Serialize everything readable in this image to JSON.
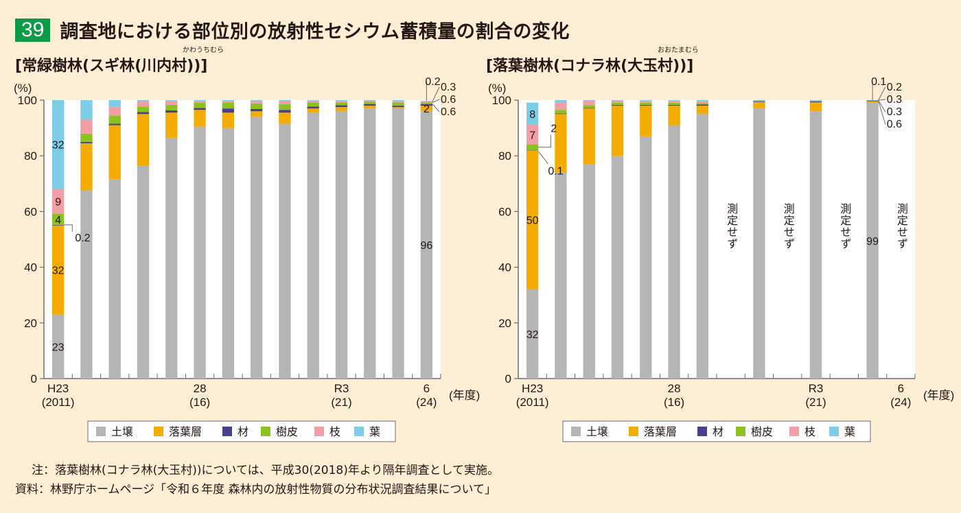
{
  "figure": {
    "number": "39",
    "title": "調査地における部位別の放射性セシウム蓄積量の割合の変化"
  },
  "panels": [
    {
      "title": "[常緑樹林(スギ林(川内村))]",
      "ruby": "かわうちむら"
    },
    {
      "title": "[落葉樹林(コナラ林(大玉村))]",
      "ruby": "おおたまむら"
    }
  ],
  "legend": [
    {
      "name": "土壌",
      "color": "#b5b5b6"
    },
    {
      "name": "落葉層",
      "color": "#f5ac00"
    },
    {
      "name": "材",
      "color": "#46408f"
    },
    {
      "name": "樹皮",
      "color": "#8cc21f"
    },
    {
      "name": "枝",
      "color": "#f19ea6"
    },
    {
      "name": "葉",
      "color": "#7dcde6"
    }
  ],
  "notes": {
    "note": "注：落葉樹林(コナラ林(大玉村))については、平成30(2018)年より隔年調査として実施。",
    "source": "資料：林野庁ホームページ「令和６年度 森林内の放射性物質の分布状況調査結果について」"
  },
  "chart_data": [
    {
      "type": "bar",
      "stacked": true,
      "title": "[常緑樹林(スギ林(川内村))]",
      "ylabel": "(%)",
      "xlabel": "(年度)",
      "ylim": [
        0,
        100
      ],
      "yticks": [
        0,
        20,
        40,
        60,
        80,
        100
      ],
      "categories": [
        2011,
        2012,
        2013,
        2014,
        2015,
        2016,
        2017,
        2018,
        2019,
        2020,
        2021,
        2022,
        2023,
        2024
      ],
      "xtick_labels": [
        {
          "year": 2011,
          "top": "H23",
          "bottom": "(2011)"
        },
        {
          "year": 2016,
          "top": "28",
          "bottom": "(16)"
        },
        {
          "year": 2021,
          "top": "R3",
          "bottom": "(21)"
        },
        {
          "year": 2024,
          "top": "6",
          "bottom": "(24)"
        }
      ],
      "series": [
        {
          "name": "土壌",
          "values": [
            23,
            67.5,
            71.5,
            76.5,
            86.5,
            90.5,
            90,
            94,
            91.5,
            95.5,
            96,
            97,
            97,
            96
          ]
        },
        {
          "name": "落葉層",
          "values": [
            32,
            17,
            19.5,
            18.5,
            9,
            6,
            5.5,
            2,
            4,
            1.5,
            1.5,
            1,
            0.5,
            2
          ]
        },
        {
          "name": "材",
          "values": [
            0.2,
            0.5,
            0.5,
            0.7,
            0.8,
            0.7,
            1.5,
            0.8,
            1.0,
            0.7,
            0.7,
            0.6,
            0.5,
            0.6
          ]
        },
        {
          "name": "樹皮",
          "values": [
            4,
            3,
            3,
            2,
            2,
            1.8,
            2.2,
            2,
            2,
            1.5,
            1,
            0.8,
            1.2,
            0.6
          ]
        },
        {
          "name": "枝",
          "values": [
            9,
            5,
            3,
            1.8,
            1.5,
            0.7,
            0.5,
            0.7,
            1.0,
            0.6,
            0.5,
            0.5,
            0.5,
            0.3
          ]
        },
        {
          "name": "葉",
          "values": [
            32,
            7,
            2.5,
            0.5,
            0.2,
            0.3,
            0.3,
            0.5,
            0.5,
            0.2,
            0.3,
            0.3,
            0.3,
            0.2
          ]
        }
      ],
      "annotations": [
        {
          "year": 2011,
          "series": "葉",
          "text": "32"
        },
        {
          "year": 2011,
          "series": "枝",
          "text": "9"
        },
        {
          "year": 2011,
          "series": "樹皮",
          "text": "4"
        },
        {
          "year": 2011,
          "series": "材",
          "text": "0.2",
          "callout": true
        },
        {
          "year": 2011,
          "series": "落葉層",
          "text": "32"
        },
        {
          "year": 2011,
          "series": "土壌",
          "text": "23"
        },
        {
          "year": 2024,
          "series": "土壌",
          "text": "96"
        },
        {
          "year": 2024,
          "series": "落葉層",
          "text": "2"
        },
        {
          "year": 2024,
          "series": "葉",
          "text": "0.2",
          "callout": true
        },
        {
          "year": 2024,
          "series": "枝",
          "text": "0.3",
          "callout": true
        },
        {
          "year": 2024,
          "series": "樹皮",
          "text": "0.6",
          "callout": true
        },
        {
          "year": 2024,
          "series": "材",
          "text": "0.6",
          "callout": true
        }
      ],
      "not_measured": []
    },
    {
      "type": "bar",
      "stacked": true,
      "title": "[落葉樹林(コナラ林(大玉村))]",
      "ylabel": "(%)",
      "xlabel": "(年度)",
      "ylim": [
        0,
        100
      ],
      "yticks": [
        0,
        20,
        40,
        60,
        80,
        100
      ],
      "categories": [
        2011,
        2012,
        2013,
        2014,
        2015,
        2016,
        2017,
        2018,
        2019,
        2020,
        2021,
        2022,
        2023,
        2024
      ],
      "xtick_labels": [
        {
          "year": 2011,
          "top": "H23",
          "bottom": "(2011)"
        },
        {
          "year": 2016,
          "top": "28",
          "bottom": "(16)"
        },
        {
          "year": 2021,
          "top": "R3",
          "bottom": "(21)"
        },
        {
          "year": 2024,
          "top": "6",
          "bottom": "(24)"
        }
      ],
      "series": [
        {
          "name": "土壌",
          "values": [
            32,
            74,
            77,
            80,
            87,
            91,
            95,
            null,
            97,
            null,
            96,
            null,
            99,
            null
          ]
        },
        {
          "name": "落葉層",
          "values": [
            50,
            21,
            20,
            18,
            11,
            7,
            3,
            null,
            2.3,
            null,
            3.2,
            null,
            0.6,
            null
          ]
        },
        {
          "name": "材",
          "values": [
            0.1,
            0.2,
            0.2,
            0.3,
            0.3,
            0.3,
            0.4,
            null,
            0.2,
            null,
            0.3,
            null,
            0.3,
            null
          ]
        },
        {
          "name": "樹皮",
          "values": [
            2,
            1.3,
            1,
            0.8,
            0.8,
            0.8,
            0.5,
            null,
            0.5,
            null,
            0.3,
            null,
            0.3,
            null
          ]
        },
        {
          "name": "枝",
          "values": [
            7,
            2.5,
            2.5,
            1.2,
            0.7,
            0.7,
            0.7,
            null,
            0.3,
            null,
            0.2,
            null,
            0.2,
            null
          ]
        },
        {
          "name": "葉",
          "values": [
            8,
            1.3,
            0.3,
            0.2,
            0.2,
            0.2,
            0.4,
            null,
            0.1,
            null,
            0.1,
            null,
            0.1,
            null
          ]
        }
      ],
      "annotations": [
        {
          "year": 2011,
          "series": "葉",
          "text": "8"
        },
        {
          "year": 2011,
          "series": "枝",
          "text": "7"
        },
        {
          "year": 2011,
          "series": "樹皮",
          "text": "2",
          "callout": true
        },
        {
          "year": 2011,
          "series": "材",
          "text": "0.1",
          "callout": true
        },
        {
          "year": 2011,
          "series": "落葉層",
          "text": "50"
        },
        {
          "year": 2011,
          "series": "土壌",
          "text": "32"
        },
        {
          "year": 2023,
          "series": "土壌",
          "text": "99"
        },
        {
          "year": 2023,
          "series": "葉",
          "text": "0.1",
          "callout": true
        },
        {
          "year": 2023,
          "series": "枝",
          "text": "0.2",
          "callout": true
        },
        {
          "year": 2023,
          "series": "樹皮",
          "text": "0.3",
          "callout": true
        },
        {
          "year": 2023,
          "series": "材",
          "text": "0.3",
          "callout": true
        },
        {
          "year": 2023,
          "series": "落葉層",
          "text": "0.6",
          "callout": true
        }
      ],
      "not_measured": [
        2018,
        2020,
        2022,
        2024
      ],
      "not_measured_label": "測定せず"
    }
  ]
}
